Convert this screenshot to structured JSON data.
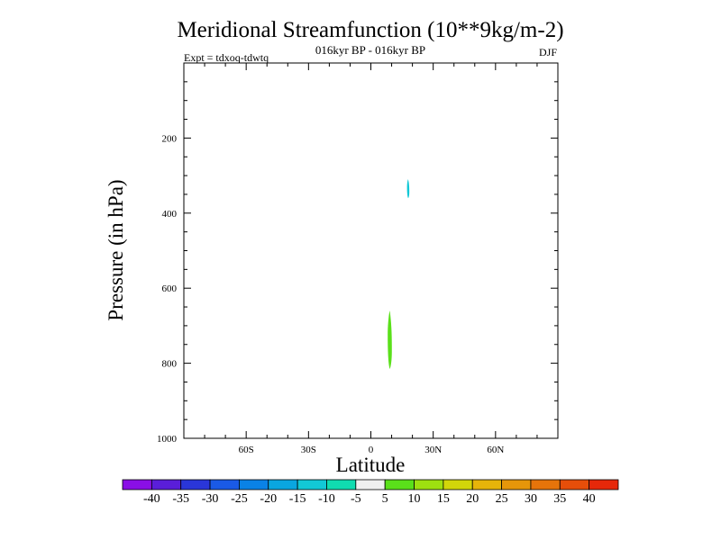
{
  "chart_data": {
    "type": "contour",
    "title": "Meridional Streamfunction (10**9kg/m-2)",
    "subtitle": "016kyr BP - 016kyr BP",
    "left_annotation": "Expt = tdxoq-tdwtq",
    "right_annotation": "DJF",
    "xlabel": "Latitude",
    "ylabel": "Pressure (in hPa)",
    "xlim": [
      -90,
      90
    ],
    "ylim": [
      1000,
      0
    ],
    "x_ticks": [
      {
        "value": -60,
        "label": "60S"
      },
      {
        "value": -30,
        "label": "30S"
      },
      {
        "value": 0,
        "label": "0"
      },
      {
        "value": 30,
        "label": "30N"
      },
      {
        "value": 60,
        "label": "60N"
      }
    ],
    "y_ticks": [
      {
        "value": 200,
        "label": "200"
      },
      {
        "value": 400,
        "label": "400"
      },
      {
        "value": 600,
        "label": "600"
      },
      {
        "value": 800,
        "label": "800"
      },
      {
        "value": 1000,
        "label": "1000"
      }
    ],
    "colorbar": {
      "labels": [
        "-40",
        "-35",
        "-30",
        "-25",
        "-20",
        "-15",
        "-10",
        "-5",
        "5",
        "10",
        "15",
        "20",
        "25",
        "30",
        "35",
        "40"
      ],
      "colors": [
        "#8a0fe6",
        "#5a1ed9",
        "#2a36d9",
        "#1a5ae6",
        "#0a82e6",
        "#0aa6e0",
        "#12c8d6",
        "#10dcb0",
        "#f0f0f0",
        "#5ae01a",
        "#9ee010",
        "#d2d60a",
        "#e6b40a",
        "#e6960a",
        "#e6740a",
        "#e64e0a",
        "#e6280a"
      ]
    },
    "regions": [
      {
        "level_color": "#12c8d6",
        "lat_range": [
          17.4,
          18.5
        ],
        "p_range": [
          310,
          360
        ]
      },
      {
        "level_color": "#5ae01a",
        "lat_range": [
          8.1,
          10.1
        ],
        "p_range": [
          660,
          815
        ]
      }
    ]
  }
}
